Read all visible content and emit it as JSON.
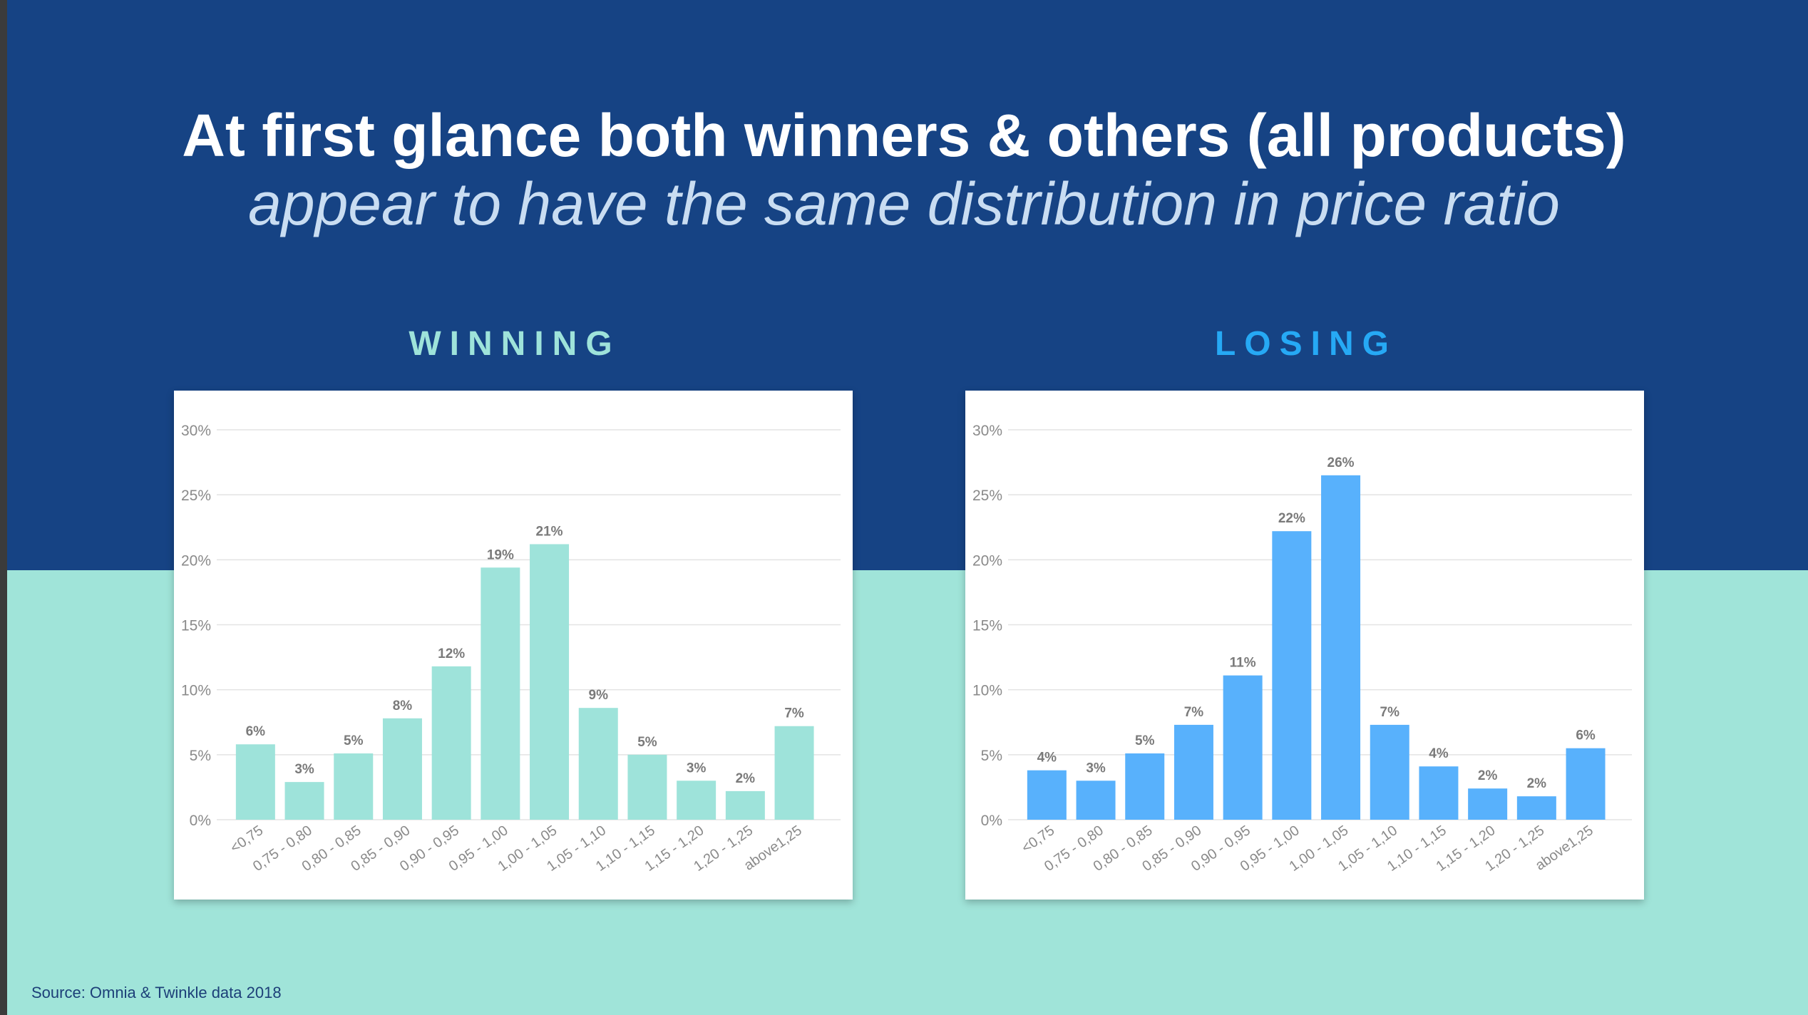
{
  "slide": {
    "title": "At first glance both winners & others (all products)",
    "subtitle": "appear to have the same distribution in price ratio",
    "source": "Source: Omnia & Twinkle data 2018",
    "colors": {
      "top_band": "#164384",
      "bottom_band": "#a0e4d9",
      "winning": "#9ee3da",
      "losing": "#58b1fc",
      "winning_label": "#9ee3da",
      "losing_label": "#26a9f5"
    }
  },
  "chart_data": [
    {
      "type": "bar",
      "title": "WINNING",
      "categories": [
        "<0,75",
        "0,75 - 0,80",
        "0,80 - 0,85",
        "0,85 - 0,90",
        "0,90 - 0,95",
        "0,95 - 1,00",
        "1,00 - 1,05",
        "1,05 - 1,10",
        "1,10 - 1,15",
        "1,15 - 1,20",
        "1,20 - 1,25",
        "above1,25"
      ],
      "values": [
        5.8,
        2.9,
        5.1,
        7.8,
        11.8,
        19.4,
        21.2,
        8.6,
        5.0,
        3.0,
        2.2,
        7.2
      ],
      "data_labels": [
        "6%",
        "3%",
        "5%",
        "8%",
        "12%",
        "19%",
        "21%",
        "9%",
        "5%",
        "3%",
        "2%",
        "7%"
      ],
      "yticks": [
        "0%",
        "5%",
        "10%",
        "15%",
        "20%",
        "25%",
        "30%"
      ],
      "ylim": [
        0,
        30
      ],
      "grid": true,
      "color": "#9ee3da"
    },
    {
      "type": "bar",
      "title": "LOSING",
      "categories": [
        "<0,75",
        "0,75 - 0,80",
        "0,80 - 0,85",
        "0,85 - 0,90",
        "0,90 - 0,95",
        "0,95 - 1,00",
        "1,00 - 1,05",
        "1,05 - 1,10",
        "1,10 - 1,15",
        "1,15 - 1,20",
        "1,20 - 1,25",
        "above1,25"
      ],
      "values": [
        3.8,
        3.0,
        5.1,
        7.3,
        11.1,
        22.2,
        26.5,
        7.3,
        4.1,
        2.4,
        1.8,
        5.5
      ],
      "data_labels": [
        "4%",
        "3%",
        "5%",
        "7%",
        "11%",
        "22%",
        "26%",
        "7%",
        "4%",
        "2%",
        "2%",
        "6%"
      ],
      "yticks": [
        "0%",
        "5%",
        "10%",
        "15%",
        "20%",
        "25%",
        "30%"
      ],
      "ylim": [
        0,
        30
      ],
      "grid": true,
      "color": "#58b1fc"
    }
  ]
}
